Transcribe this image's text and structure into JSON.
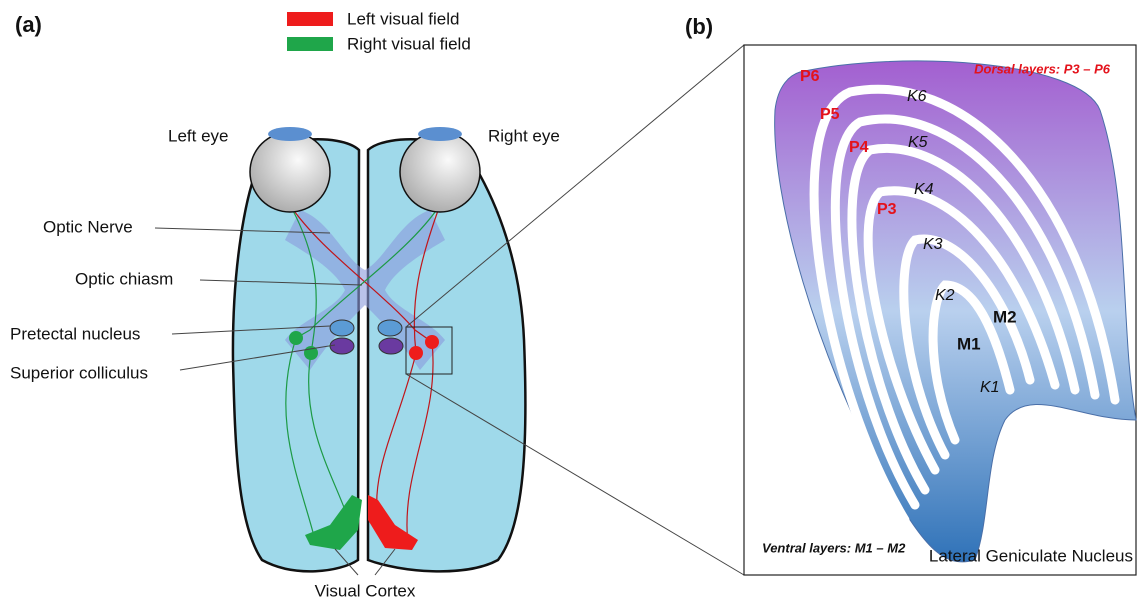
{
  "panel_a": {
    "label": "(a)",
    "legend": [
      {
        "name": "Left visual field",
        "color": "#ee1c1c"
      },
      {
        "name": "Right visual field",
        "color": "#1fa64a"
      }
    ],
    "eyes": {
      "left": "Left eye",
      "right": "Right eye"
    },
    "labels": [
      "Optic Nerve",
      "Optic chiasm",
      "Pretectal nucleus",
      "Superior colliculus"
    ],
    "cortex": "Visual Cortex"
  },
  "panel_b": {
    "label": "(b)",
    "dorsal": "Dorsal layers: P3 – P6",
    "p_layers": [
      "P6",
      "P5",
      "P4",
      "P3"
    ],
    "k_layers": [
      "K6",
      "K5",
      "K4",
      "K3",
      "K2",
      "K1"
    ],
    "m_layers": [
      "M2",
      "M1"
    ],
    "ventral": "Ventral layers: M1 – M2",
    "title": "Lateral Geniculate Nucleus"
  }
}
